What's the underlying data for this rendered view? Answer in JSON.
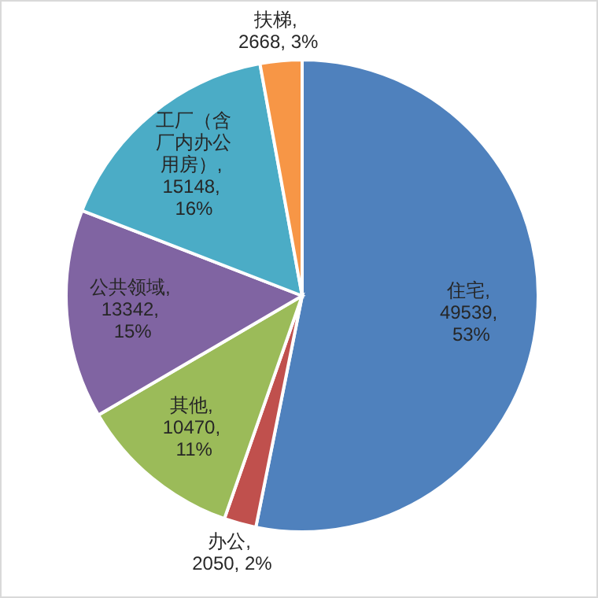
{
  "chart_data": {
    "type": "pie",
    "categories": [
      "住宅",
      "办公",
      "其他",
      "公共领域",
      "工厂（含厂内办公用房）",
      "扶梯"
    ],
    "values": [
      49539,
      2050,
      10470,
      13342,
      15148,
      2668
    ],
    "value_labels": [
      ", 49539, 53%",
      ", 2050, 2%",
      ", 10470, 11%",
      ", 13342, 15%",
      ", 15148, 16%",
      ", 2668, 3%"
    ],
    "colors": [
      "#4f81bd",
      "#c0504d",
      "#9bbb59",
      "#8064a2",
      "#4bacc6",
      "#f79646"
    ]
  }
}
